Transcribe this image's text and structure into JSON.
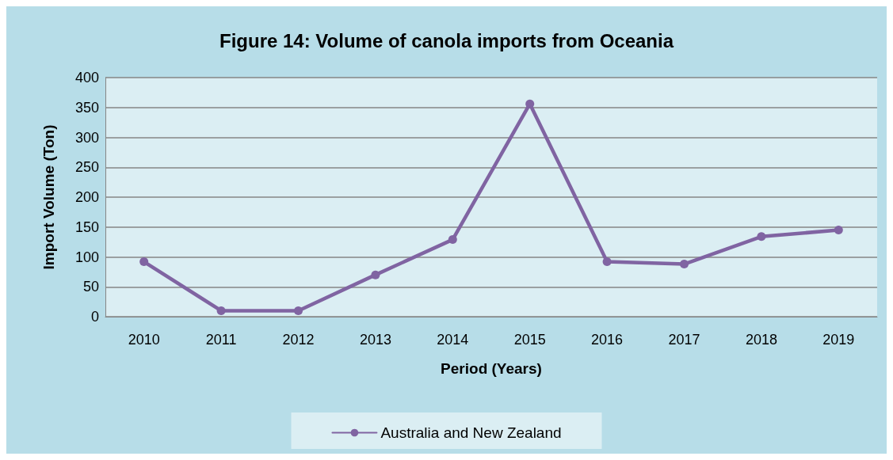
{
  "chart_data": {
    "type": "line",
    "title": "Figure 14: Volume of canola imports from Oceania",
    "xlabel": "Period (Years)",
    "ylabel": "Import Volume (Ton)",
    "categories": [
      "2010",
      "2011",
      "2012",
      "2013",
      "2014",
      "2015",
      "2016",
      "2017",
      "2018",
      "2019"
    ],
    "series": [
      {
        "name": "Australia and New Zealand",
        "color": "#8064a2",
        "values": [
          92,
          10,
          10,
          70,
          129,
          356,
          92,
          88,
          134,
          145
        ]
      }
    ],
    "ylim": [
      0,
      400
    ],
    "yticks": [
      0,
      50,
      100,
      150,
      200,
      250,
      300,
      350,
      400
    ],
    "grid": "y",
    "legend": "bottom",
    "marker": "circle",
    "line_style": "solid"
  }
}
